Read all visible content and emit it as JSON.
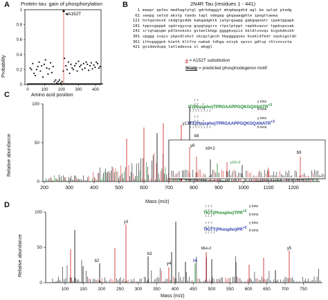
{
  "panelA": {
    "letter": "A",
    "title": "Protein tau: gain of phosphorylation",
    "ylabel": "Probability",
    "xlabel": "Amino acid position",
    "annotation": "A152T",
    "yticks": [
      "1",
      "0.8",
      "0.6",
      "0.4",
      "0.2",
      "0"
    ],
    "xticks": [
      "0",
      "100",
      "200",
      "300",
      "400"
    ]
  },
  "panelB": {
    "letter": "B",
    "title": "2N4R Tau (residues 1 - 441)",
    "sequence": [
      {
        "num": "1",
        "text": "maepr qefev medhagtytgl gdrkdqggyt mhqdqegdtd agl ke splqt ptedg"
      },
      {
        "num": "61",
        "text": "seepg setsd akstp taedv tapl vdegap gkqaaaqphte ipegttaeea"
      },
      {
        "num": "121",
        "text": "hvtqarmvsk skdgtgsddk kakgadgktk iatprgaapp gqkgqanatr ipaktppapk"
      },
      {
        "num": "181",
        "text": "tppssgeppk sgdrsgyssp gspgtpgsrs rtpslptppt repkkvavvr tppkspssak"
      },
      {
        "num": "241",
        "text": "srlqtapvpm pdlknvkski gstenlkhqp ggggkvqiin kkldlsnvqs kcgskdnikh"
      },
      {
        "num": "301",
        "text": "vpggg svqiv ykpvdlskvt skcgslgnih hkpgggqvev ksekldfkdr vqskigsldn"
      },
      {
        "num": "361",
        "text": "ithvpgggnk kieth kltfre nakak tdhga eivyk spvvs gdtsp rhlsnvssta"
      },
      {
        "num": "421",
        "text": "gsidmvdspq latladevsa sl akqgl"
      }
    ],
    "legend_a_symbol": "a",
    "legend_a_text": " = A152T substitution",
    "legend_motif_symbol": "tkiatp",
    "legend_motif_text": " = predicted phosphodegeron motif"
  },
  "panelC": {
    "letter": "C",
    "ylabel": "Relative abundance",
    "xlabel": "Mass (m/z)",
    "yticks": [
      "100",
      "50",
      "0"
    ],
    "xticks": [
      "200",
      "300",
      "400",
      "500",
      "600",
      "700",
      "800",
      "900",
      "1000",
      "1100",
      "1200"
    ],
    "peptide_green": "IT(Phospho)TPRGAAPPGQKGQANATR",
    "peptide_green_charge": "+3",
    "peptide_blue": "ITT(Phospho)TPRGAAPPGQKGQANATR",
    "peptide_blue_charge": "+3",
    "y_ions": "y ions",
    "b_ions": "b ions",
    "peak_labels": [
      "y17+2",
      "b8",
      "y8",
      "b9+2",
      "y17+2",
      "y16+2",
      "b9"
    ]
  },
  "panelD": {
    "letter": "D",
    "ylabel": "Relative abundance",
    "xlabel": "Mass (m/z)",
    "yticks": [
      "100",
      "50",
      "0"
    ],
    "xticks": [
      "100",
      "150",
      "200",
      "250",
      "300",
      "350",
      "400",
      "450",
      "500",
      "550",
      "600",
      "650",
      "700",
      "750"
    ],
    "peptide_green": "TKIT(Phospho)TPR",
    "peptide_green_charge": "+2",
    "peptide_blue": "TKITT(Phospho)PR",
    "peptide_blue_charge": "+2",
    "y_ions": "y ions",
    "b_ions": "b ions",
    "peak_labels": [
      "y3",
      "b3",
      "b2",
      "y2",
      "y4",
      "b6",
      "MH+2",
      "y5"
    ]
  },
  "colors": {
    "red": "#d32b2b",
    "green": "#1c8a2c",
    "blue": "#2a3aa8",
    "black": "#111111"
  }
}
